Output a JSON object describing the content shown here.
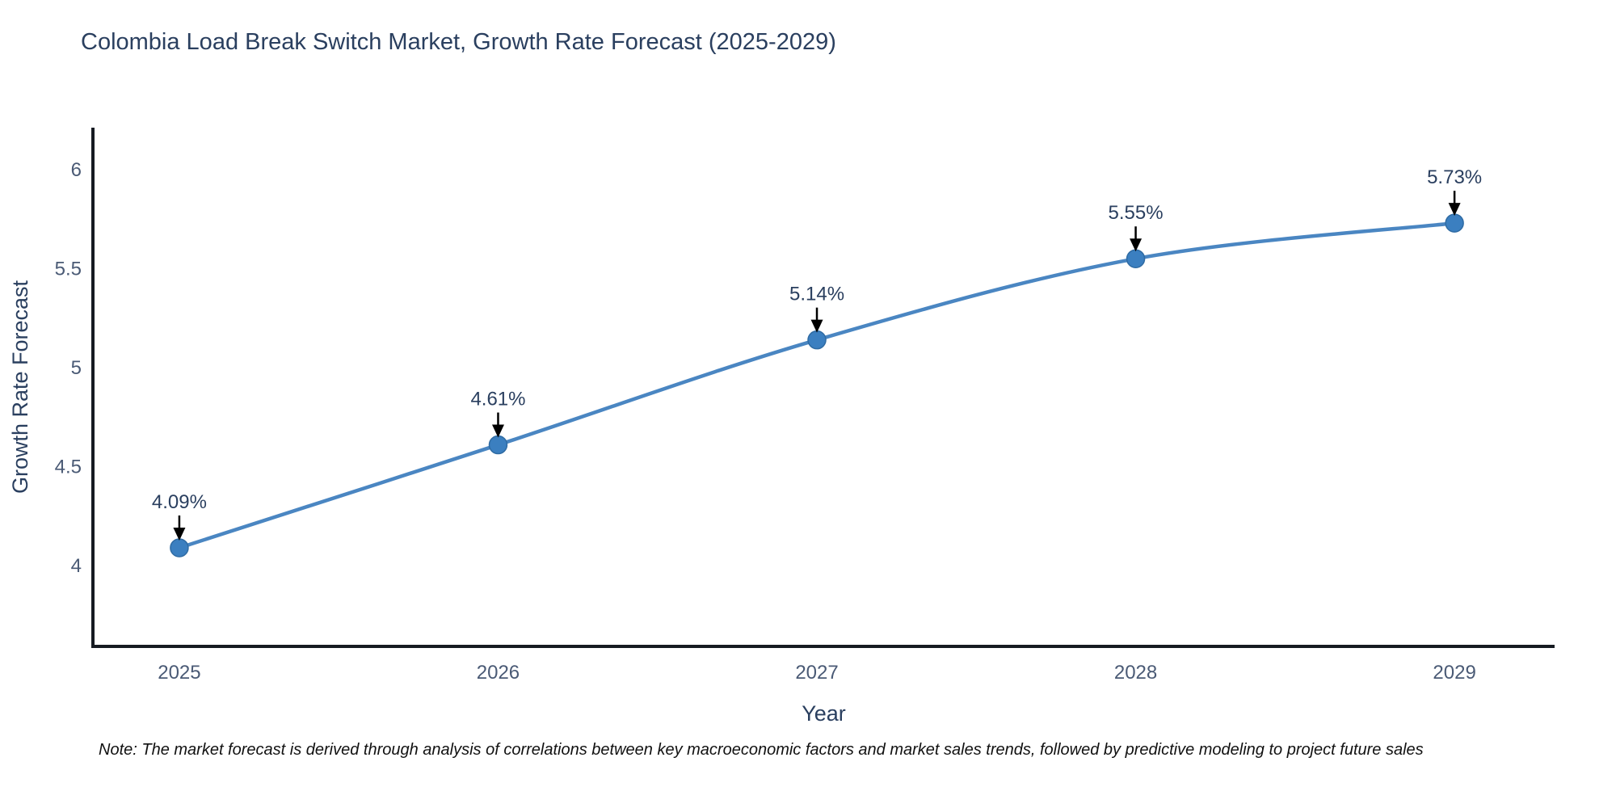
{
  "page": {
    "title": "Colombia Load Break Switch Market, Growth Rate Forecast (2025-2029)",
    "note": "Note: The market forecast is derived through analysis of correlations between key macroeconomic factors and market sales trends, followed by predictive modeling to project future sales"
  },
  "chart_data": {
    "type": "line",
    "title": "Colombia Load Break Switch Market, Growth Rate Forecast (2025-2029)",
    "xlabel": "Year",
    "ylabel": "Growth Rate Forecast",
    "x": [
      2025,
      2026,
      2027,
      2028,
      2029
    ],
    "series": [
      {
        "name": "Growth Rate Forecast",
        "values": [
          4.09,
          4.61,
          5.14,
          5.55,
          5.73
        ]
      }
    ],
    "point_labels": [
      "4.09%",
      "4.61%",
      "5.14%",
      "5.55%",
      "5.73%"
    ],
    "yticks": [
      4,
      4.5,
      5,
      5.5,
      6
    ],
    "ytick_labels": [
      "4",
      "4.5",
      "5",
      "5.5",
      "6"
    ],
    "xtick_labels": [
      "2025",
      "2026",
      "2027",
      "2028",
      "2029"
    ],
    "ylim": [
      3.592,
      6.212
    ],
    "xlim": [
      2024.729,
      2029.314
    ],
    "grid": false,
    "legend_position": "none",
    "line_shape": "spline",
    "annotation_style": "label-above-with-down-arrow",
    "colors": {
      "line": "#4a86c2",
      "marker_fill": "#3b7fc0",
      "marker_edge": "#2f6ba3",
      "axis_line": "#161b22",
      "title_text": "#2a3f5f",
      "axis_title_text": "#2a3f5f",
      "tick_text": "#4a5a75",
      "annotation_text": "#2a3f5f",
      "arrow": "#000000",
      "background": "#ffffff"
    }
  }
}
